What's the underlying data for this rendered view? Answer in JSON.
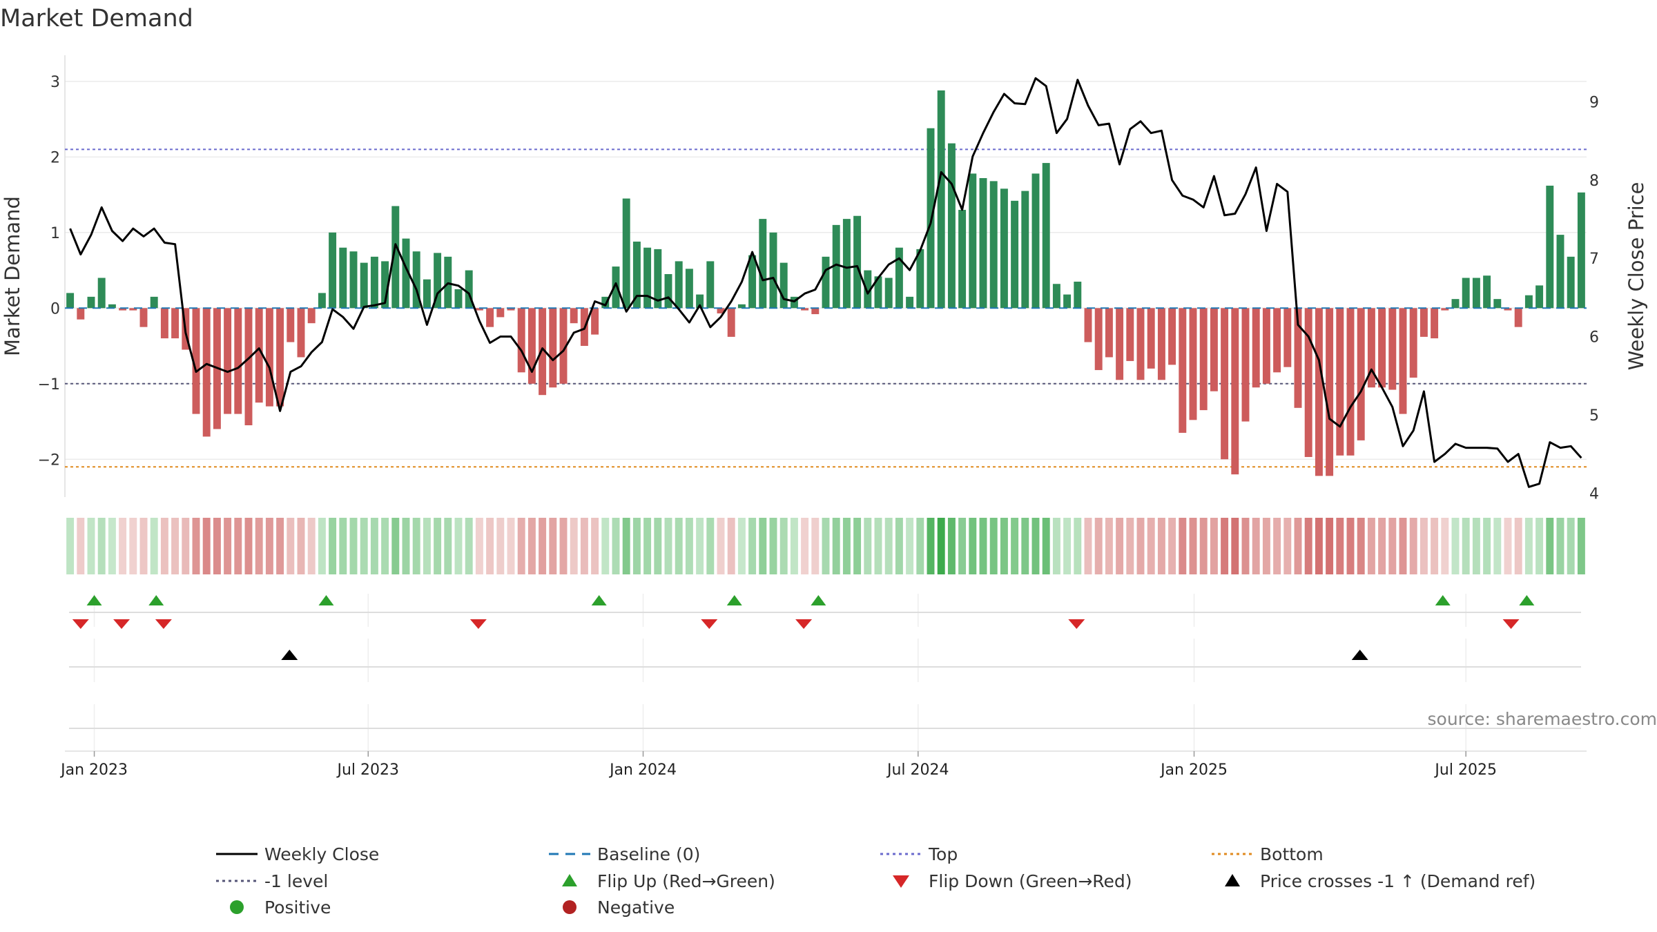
{
  "chart_data": {
    "type": "bar",
    "title": "Market Demand",
    "ylabel": "Market Demand",
    "y2label": "Weekly Close Price",
    "ylim": [
      -2.5,
      3.3
    ],
    "y2lim": [
      3.95,
      9.55
    ],
    "yticks": [
      "3",
      "2",
      "1",
      "0",
      "−1",
      "−2"
    ],
    "ytick_values": [
      3,
      2,
      1,
      0,
      -1,
      -2
    ],
    "y2ticks": [
      "9",
      "8",
      "7",
      "6",
      "5",
      "4"
    ],
    "y2tick_values": [
      9,
      8,
      7,
      6,
      5,
      4
    ],
    "levels": {
      "top": 2.1,
      "minus1": -1.0,
      "bottom": -2.1,
      "baseline": 0
    },
    "x_ticks": [
      {
        "label": "Jan 2023",
        "week": 2.8
      },
      {
        "label": "Jul 2023",
        "week": 28.9
      },
      {
        "label": "Jan 2024",
        "week": 55.1
      },
      {
        "label": "Jul 2024",
        "week": 81.3
      },
      {
        "label": "Jan 2025",
        "week": 107.6
      },
      {
        "label": "Jul 2025",
        "week": 133.5
      }
    ],
    "weeks": 145,
    "series": [
      {
        "name": "Market Demand",
        "values": [
          0.2,
          -0.15,
          0.15,
          0.4,
          0.05,
          -0.03,
          -0.03,
          -0.25,
          0.15,
          -0.4,
          -0.4,
          -0.55,
          -1.4,
          -1.7,
          -1.6,
          -1.4,
          -1.4,
          -1.55,
          -1.25,
          -1.3,
          -1.3,
          -0.45,
          -0.65,
          -0.2,
          0.2,
          1.0,
          0.8,
          0.75,
          0.6,
          0.68,
          0.62,
          1.35,
          0.92,
          0.75,
          0.38,
          0.73,
          0.68,
          0.25,
          0.5,
          -0.03,
          -0.25,
          -0.12,
          -0.03,
          -0.85,
          -1.0,
          -1.15,
          -1.05,
          -1.0,
          -0.2,
          -0.5,
          -0.35,
          0.15,
          0.55,
          1.45,
          0.88,
          0.8,
          0.78,
          0.45,
          0.62,
          0.52,
          0.18,
          0.62,
          -0.07,
          -0.38,
          0.05,
          0.7,
          1.18,
          1.0,
          0.6,
          0.15,
          -0.03,
          -0.08,
          0.68,
          1.1,
          1.18,
          1.22,
          0.5,
          0.42,
          0.4,
          0.8,
          0.15,
          0.78,
          2.38,
          2.88,
          2.18,
          1.3,
          1.78,
          1.72,
          1.68,
          1.58,
          1.42,
          1.55,
          1.78,
          1.92,
          0.32,
          0.18,
          0.35,
          -0.45,
          -0.82,
          -0.65,
          -0.95,
          -0.7,
          -0.95,
          -0.8,
          -0.95,
          -0.75,
          -1.65,
          -1.48,
          -1.35,
          -1.1,
          -2.0,
          -2.2,
          -1.5,
          -1.05,
          -1.0,
          -0.85,
          -0.78,
          -1.32,
          -1.97,
          -2.22,
          -2.22,
          -1.95,
          -1.95,
          -1.75,
          -1.05,
          -1.05,
          -1.08,
          -1.4,
          -0.92,
          -0.38,
          -0.4,
          -0.03,
          0.12,
          0.4,
          0.4,
          0.43,
          0.12,
          -0.03,
          -0.25,
          0.17,
          0.3,
          1.62,
          0.97,
          0.68,
          1.53
        ]
      },
      {
        "name": "Weekly Close",
        "values": [
          7.38,
          7.05,
          7.3,
          7.65,
          7.35,
          7.22,
          7.38,
          7.28,
          7.38,
          7.2,
          7.18,
          6.05,
          5.55,
          5.65,
          5.6,
          5.55,
          5.6,
          5.72,
          5.85,
          5.6,
          5.05,
          5.55,
          5.62,
          5.8,
          5.93,
          6.35,
          6.25,
          6.1,
          6.38,
          6.4,
          6.43,
          7.18,
          6.88,
          6.6,
          6.15,
          6.55,
          6.68,
          6.65,
          6.55,
          6.2,
          5.92,
          6.0,
          6.0,
          5.82,
          5.55,
          5.85,
          5.7,
          5.82,
          6.05,
          6.1,
          6.45,
          6.4,
          6.68,
          6.32,
          6.52,
          6.52,
          6.46,
          6.5,
          6.35,
          6.18,
          6.4,
          6.12,
          6.25,
          6.45,
          6.7,
          7.08,
          6.72,
          6.75,
          6.48,
          6.45,
          6.55,
          6.6,
          6.85,
          6.92,
          6.88,
          6.9,
          6.55,
          6.75,
          6.92,
          7.0,
          6.85,
          7.1,
          7.45,
          8.1,
          7.95,
          7.62,
          8.3,
          8.6,
          8.87,
          9.1,
          8.98,
          8.97,
          9.3,
          9.2,
          8.6,
          8.78,
          9.28,
          8.95,
          8.7,
          8.72,
          8.2,
          8.65,
          8.75,
          8.6,
          8.63,
          8.0,
          7.8,
          7.75,
          7.65,
          8.05,
          7.55,
          7.57,
          7.82,
          8.16,
          7.35,
          7.95,
          7.85,
          6.15,
          6.0,
          5.7,
          4.95,
          4.85,
          5.1,
          5.3,
          5.58,
          5.35,
          5.1,
          4.6,
          4.8,
          5.3,
          4.4,
          4.5,
          4.63,
          4.58,
          4.58,
          4.58,
          4.57,
          4.4,
          4.5,
          4.08,
          4.12,
          4.65,
          4.58,
          4.6,
          4.45
        ]
      }
    ],
    "flip_up_weeks": [
      2.8,
      8.7,
      24.9,
      50.9,
      63.8,
      71.8,
      131.3,
      139.3
    ],
    "flip_down_weeks": [
      1.5,
      5.4,
      9.4,
      39.4,
      61.4,
      70.4,
      96.4,
      137.8
    ],
    "price_cross_weeks": [
      21.4,
      123.4
    ]
  },
  "legend": {
    "items": [
      {
        "label": "Weekly Close",
        "symbol": "solid-line",
        "color": "#000000"
      },
      {
        "label": "Baseline (0)",
        "symbol": "dashed-line",
        "color": "#1f77b4"
      },
      {
        "label": "Top",
        "symbol": "dotted-line",
        "color": "#6a6acd"
      },
      {
        "label": "Bottom",
        "symbol": "dotted-line",
        "color": "#e08a1e"
      },
      {
        "label": "-1 level",
        "symbol": "dotted-line",
        "color": "#555577"
      },
      {
        "label": "Flip Up (Red→Green)",
        "symbol": "triangle-up",
        "color": "#2ca02c"
      },
      {
        "label": "Flip Down (Green→Red)",
        "symbol": "triangle-down",
        "color": "#d62728"
      },
      {
        "label": "Price crosses -1 ↑ (Demand ref)",
        "symbol": "triangle-up",
        "color": "#000000"
      },
      {
        "label": "Positive",
        "symbol": "circle",
        "color": "#2ca02c"
      },
      {
        "label": "Negative",
        "symbol": "circle",
        "color": "#b22222"
      }
    ]
  },
  "source_text": "source: sharemaestro.com",
  "colors": {
    "positive": "#2e8b57",
    "negative": "#cd5c5c",
    "price": "#000000"
  }
}
